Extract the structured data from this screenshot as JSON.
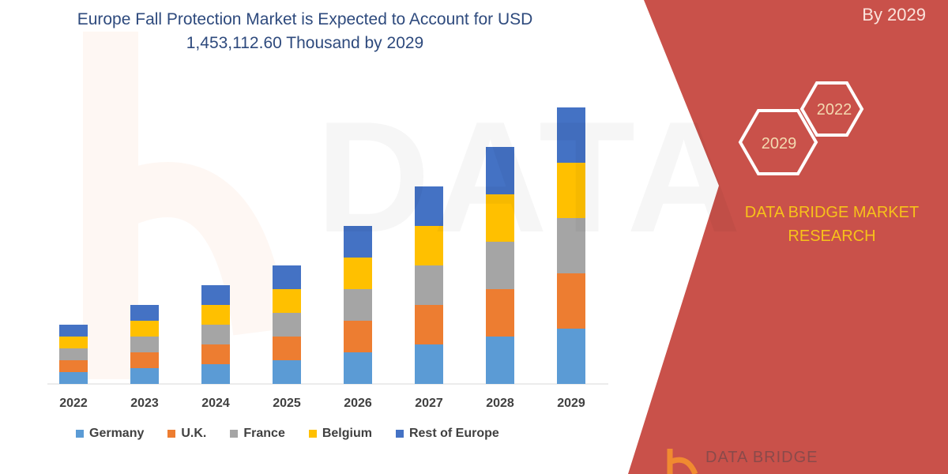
{
  "header": {
    "title_line1": "Europe Fall Protection Market is Expected to Account for USD",
    "title_line2": "1,453,112.60 Thousand by 2029"
  },
  "side_panel": {
    "subtitle": "By 2029",
    "hex_2022": "2022",
    "hex_2029": "2029",
    "brand_line1": "DATA BRIDGE MARKET",
    "brand_line2": "RESEARCH",
    "brand_color": "#f7c21a",
    "panel_color": "#c9514a"
  },
  "watermark": "DATABRIDGE",
  "logo": {
    "text": "DATA BRIDGE"
  },
  "chart_data": {
    "type": "bar",
    "stacked": true,
    "title": "Europe Fall Protection Market is Expected to Account for USD 1,453,112.60 Thousand by 2029",
    "categories": [
      "2022",
      "2023",
      "2024",
      "2025",
      "2026",
      "2027",
      "2028",
      "2029"
    ],
    "y_axis_shown": false,
    "grid": false,
    "legend_position": "bottom",
    "series": [
      {
        "name": "Germany",
        "color": "#5b9bd5",
        "values": [
          15,
          20,
          25,
          30,
          40,
          50,
          60,
          70
        ]
      },
      {
        "name": "U.K.",
        "color": "#ed7d31",
        "values": [
          15,
          20,
          25,
          30,
          40,
          50,
          60,
          70
        ]
      },
      {
        "name": "France",
        "color": "#a5a5a5",
        "values": [
          15,
          20,
          25,
          30,
          40,
          50,
          60,
          70
        ]
      },
      {
        "name": "Belgium",
        "color": "#ffc000",
        "values": [
          15,
          20,
          25,
          30,
          40,
          50,
          60,
          70
        ]
      },
      {
        "name": "Rest of Europe",
        "color": "#4472c4",
        "values": [
          15,
          20,
          25,
          30,
          40,
          50,
          60,
          70
        ]
      }
    ]
  }
}
